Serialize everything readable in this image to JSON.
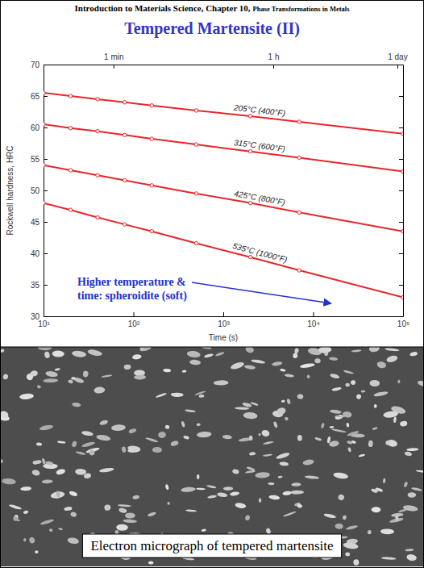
{
  "header": {
    "course": "Introduction to Materials Science, Chapter 10,",
    "topic": "Phase Transformations in Metals"
  },
  "title": "Tempered Martensite (II)",
  "chart_data": {
    "type": "line",
    "x_label": "Time (s)",
    "y_label": "Rockwell hardness, HRC",
    "log": "x",
    "xlim": [
      10,
      100000
    ],
    "ylim": [
      30,
      70
    ],
    "xticks": [
      {
        "value": 10,
        "label": "10¹"
      },
      {
        "value": 100,
        "label": "10²"
      },
      {
        "value": 1000,
        "label": "10³"
      },
      {
        "value": 10000,
        "label": "10⁴"
      },
      {
        "value": 100000,
        "label": "10⁵"
      }
    ],
    "x2ticks": [
      {
        "value": 60,
        "label": "1 min"
      },
      {
        "value": 3600,
        "label": "1 h"
      },
      {
        "value": 86400,
        "label": "1 day"
      }
    ],
    "yticks": [
      30,
      35,
      40,
      45,
      50,
      55,
      60,
      65,
      70
    ],
    "x": [
      10,
      20,
      40,
      80,
      160,
      500,
      2000,
      7000,
      100000
    ],
    "series": [
      {
        "name": "205°C (400°F)",
        "color": "#e8262b",
        "marker": "circle",
        "values": [
          65.5,
          65.0,
          64.5,
          64.0,
          63.5,
          62.7,
          61.8,
          60.9,
          59.0
        ]
      },
      {
        "name": "315°C (600°F)",
        "color": "#e8262b",
        "marker": "circle",
        "values": [
          60.5,
          59.9,
          59.4,
          58.8,
          58.2,
          57.3,
          56.2,
          55.2,
          53.0
        ]
      },
      {
        "name": "425°C (800°F)",
        "color": "#e8262b",
        "marker": "circle",
        "values": [
          54.0,
          53.2,
          52.4,
          51.6,
          50.8,
          49.5,
          48.0,
          46.5,
          43.5
        ]
      },
      {
        "name": "535°C (1000°F)",
        "color": "#e8262b",
        "marker": "circle",
        "values": [
          48.0,
          46.9,
          45.7,
          44.6,
          43.5,
          41.6,
          39.4,
          37.3,
          33.0
        ]
      }
    ],
    "annotation": [
      "Higher temperature &",
      "time: spheroidite (soft)"
    ]
  },
  "micrograph": {
    "caption": "Electron micrograph of tempered martensite"
  }
}
